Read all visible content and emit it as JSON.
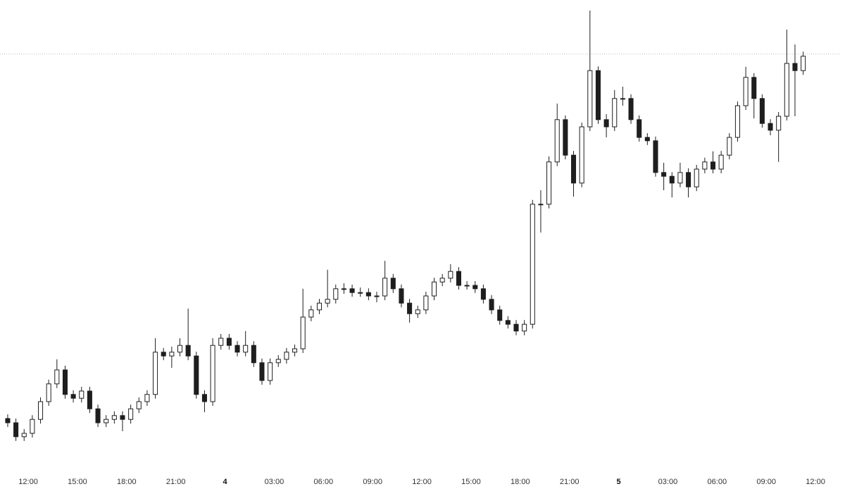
{
  "chart_data": {
    "type": "candlestick",
    "color": "#1e1e1e",
    "x": [
      10.5,
      11,
      11.5,
      12,
      12.5,
      13,
      13.5,
      14,
      14.5,
      15,
      15.5,
      16,
      16.5,
      17,
      17.5,
      18,
      18.5,
      19,
      19.5,
      20,
      20.5,
      21,
      21.5,
      22,
      22.5,
      23,
      23.5,
      24,
      24.5,
      25,
      25.5,
      26,
      26.5,
      27,
      27.5,
      28,
      28.5,
      29,
      29.5,
      30,
      30.5,
      31,
      31.5,
      32,
      32.5,
      33,
      33.5,
      34,
      34.5,
      35,
      35.5,
      36,
      36.5,
      37,
      37.5,
      38,
      38.5,
      39,
      39.5,
      40,
      40.5,
      41,
      41.5,
      42,
      42.5,
      43,
      43.5,
      44,
      44.5,
      45,
      45.5,
      46,
      46.5,
      47,
      47.5,
      48,
      48.5,
      49,
      49.5,
      50,
      50.5,
      51,
      51.5,
      52,
      52.5,
      53,
      53.5,
      54,
      54.5,
      55,
      55.5,
      56,
      56.5,
      57,
      57.5,
      58,
      58.5,
      59
    ],
    "open": [
      11,
      10,
      6.7,
      7.5,
      10.8,
      15,
      19.2,
      22.5,
      16.7,
      15.8,
      17.5,
      13.3,
      10,
      10.8,
      11.7,
      10.8,
      13.3,
      15,
      16.7,
      26.7,
      25.8,
      26.7,
      28.3,
      25.8,
      16.7,
      15,
      28.3,
      30,
      28.3,
      26.7,
      28.3,
      24.2,
      20,
      24.2,
      25,
      26.7,
      27.5,
      35,
      36.7,
      38.3,
      39.2,
      41.7,
      41.7,
      40.8,
      40.8,
      40,
      40,
      44.2,
      41.7,
      38.3,
      35.8,
      36.7,
      40,
      43.3,
      44.2,
      45.8,
      42.5,
      42.5,
      41.7,
      39.2,
      36.7,
      34.2,
      33.3,
      31.7,
      33.3,
      61.7,
      61.7,
      71.7,
      81.7,
      73.3,
      66.7,
      80,
      93.3,
      81.7,
      80,
      86.7,
      86.7,
      81.7,
      77.5,
      76.7,
      69.2,
      68.3,
      66.7,
      69.2,
      65.8,
      70,
      71.7,
      70,
      73.3,
      77.5,
      85,
      91.7,
      86.7,
      80.8,
      79.2,
      82.5,
      95,
      93.3
    ],
    "high": [
      12,
      11,
      8.5,
      11.8,
      16,
      20.2,
      25,
      23.5,
      17.7,
      18.5,
      18.5,
      14.3,
      11.8,
      12.7,
      12.7,
      14.3,
      16,
      17.7,
      30,
      27.7,
      28,
      30,
      37,
      26.8,
      17.7,
      30,
      31,
      31,
      29.3,
      31.7,
      29.3,
      25.2,
      25.2,
      26,
      27.7,
      28.5,
      41.7,
      37.7,
      39.3,
      46.2,
      42.7,
      43,
      42.7,
      42,
      41.8,
      41,
      48.3,
      45.2,
      42.7,
      39.3,
      37.7,
      41,
      44.3,
      45.2,
      47.5,
      46.8,
      43.5,
      43.5,
      42.7,
      40.2,
      37.7,
      35.2,
      34.3,
      34.3,
      62.7,
      65,
      73,
      85.5,
      82.7,
      74.3,
      81,
      107.5,
      94.3,
      83,
      88.7,
      89.5,
      87.7,
      82.7,
      78.5,
      77.7,
      71.5,
      69.3,
      71.5,
      70.2,
      71,
      72.7,
      74.2,
      74.3,
      78.5,
      86,
      94.2,
      92.7,
      87.7,
      81.8,
      83.5,
      103,
      99.5,
      97.8
    ],
    "low": [
      9,
      5.7,
      5.7,
      6.5,
      9.8,
      14,
      18.2,
      15.7,
      14.8,
      14.8,
      12.3,
      9,
      9,
      9.8,
      8,
      9.8,
      12.3,
      14,
      15.7,
      24.8,
      23,
      25.7,
      24.8,
      15.7,
      12.5,
      14,
      27.3,
      27.3,
      25.7,
      25.7,
      23.2,
      19,
      19,
      23.2,
      24,
      25.7,
      26.5,
      34,
      35.7,
      37.3,
      38.2,
      40.5,
      39.8,
      39.8,
      39,
      38.5,
      39,
      40.7,
      37.3,
      33.7,
      34.8,
      35.7,
      39,
      42.3,
      43.2,
      41.5,
      41.5,
      40.7,
      38.2,
      35.7,
      33.2,
      32.3,
      30.7,
      30.7,
      32.3,
      55,
      60.7,
      70.7,
      72.3,
      63.5,
      65.7,
      79,
      80.7,
      77.5,
      79,
      85,
      80.7,
      76.5,
      75.7,
      68.2,
      65,
      63.3,
      65.7,
      63.3,
      64.8,
      69,
      69,
      69,
      72.3,
      76.5,
      84,
      82,
      79.8,
      78,
      71.7,
      81.5,
      82.5,
      92.3
    ],
    "close": [
      10,
      6.7,
      7.5,
      10.8,
      15,
      19.2,
      22.5,
      16.7,
      15.8,
      17.5,
      13.3,
      10,
      10.8,
      11.7,
      10.8,
      13.3,
      15,
      16.7,
      26.7,
      25.8,
      26.7,
      28.3,
      25.8,
      16.7,
      15,
      28.3,
      30,
      28.3,
      26.7,
      28.3,
      24.2,
      20,
      24.2,
      25,
      26.7,
      27.5,
      35,
      36.7,
      38.3,
      39.2,
      41.7,
      41.7,
      40.8,
      40.8,
      40,
      40,
      44.2,
      41.7,
      38.3,
      35.8,
      36.7,
      40,
      43.3,
      44.2,
      45.8,
      42.5,
      42.5,
      41.7,
      39.2,
      36.7,
      34.2,
      33.3,
      31.7,
      33.3,
      61.7,
      61.7,
      71.7,
      81.7,
      73.3,
      66.7,
      80,
      93.3,
      81.7,
      80,
      86.7,
      86.7,
      81.7,
      77.5,
      76.7,
      69.2,
      68.3,
      66.7,
      69.2,
      65.8,
      70,
      71.7,
      70,
      73.3,
      77.5,
      85,
      91.7,
      86.7,
      80.8,
      79.2,
      82.5,
      95,
      93.3,
      96.7
    ],
    "last_price": 97.2,
    "xlim": [
      10.28,
      61.8
    ],
    "ylim": [
      0,
      110
    ],
    "xticks": [
      {
        "value": 12,
        "label": "12:00"
      },
      {
        "value": 15,
        "label": "15:00"
      },
      {
        "value": 18,
        "label": "18:00"
      },
      {
        "value": 21,
        "label": "21:00"
      },
      {
        "value": 24,
        "label": "4"
      },
      {
        "value": 27,
        "label": "03:00"
      },
      {
        "value": 30,
        "label": "06:00"
      },
      {
        "value": 33,
        "label": "09:00"
      },
      {
        "value": 36,
        "label": "12:00"
      },
      {
        "value": 39,
        "label": "15:00"
      },
      {
        "value": 42,
        "label": "18:00"
      },
      {
        "value": 45,
        "label": "21:00"
      },
      {
        "value": 48,
        "label": "5"
      },
      {
        "value": 51,
        "label": "03:00"
      },
      {
        "value": 54,
        "label": "06:00"
      },
      {
        "value": 57,
        "label": "09:00"
      },
      {
        "value": 60,
        "label": "12:00"
      }
    ]
  }
}
